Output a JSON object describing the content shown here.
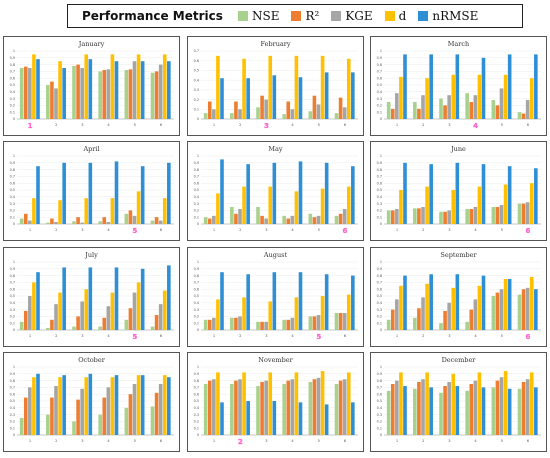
{
  "legend": {
    "title": "Performance Metrics",
    "items": [
      {
        "label": "NSE",
        "color": "#a9d18e"
      },
      {
        "label": "R²",
        "color": "#ed7d31"
      },
      {
        "label": "KGE",
        "color": "#a5a5a5"
      },
      {
        "label": "d",
        "color": "#ffc000"
      },
      {
        "label": "nRMSE",
        "color": "#2e8fd4"
      }
    ]
  },
  "highlight_color": "#ff66cc",
  "chart_data": [
    {
      "type": "bar",
      "title": "January",
      "categories": [
        "1",
        "2",
        "3",
        "4",
        "5",
        "6"
      ],
      "ylim": [
        0,
        1
      ],
      "yticks": [
        "0",
        "0.1",
        "0.2",
        "0.3",
        "0.4",
        "0.5",
        "0.6",
        "0.7",
        "0.8",
        "0.9",
        "1"
      ],
      "highlight": "1",
      "series": [
        {
          "name": "NSE",
          "values": [
            0.75,
            0.5,
            0.78,
            0.7,
            0.72,
            0.68
          ]
        },
        {
          "name": "R²",
          "values": [
            0.77,
            0.55,
            0.8,
            0.72,
            0.73,
            0.7
          ]
        },
        {
          "name": "KGE",
          "values": [
            0.75,
            0.45,
            0.75,
            0.73,
            0.85,
            0.8
          ]
        },
        {
          "name": "d",
          "values": [
            0.95,
            0.85,
            0.95,
            0.95,
            0.95,
            0.95
          ]
        },
        {
          "name": "nRMSE",
          "values": [
            0.88,
            0.75,
            0.88,
            0.85,
            0.85,
            0.85
          ]
        }
      ]
    },
    {
      "type": "bar",
      "title": "February",
      "categories": [
        "1",
        "2",
        "3",
        "4",
        "5",
        "6"
      ],
      "ylim": [
        0,
        0.7
      ],
      "yticks": [
        "0",
        "0.1",
        "0.2",
        "0.3",
        "0.4",
        "0.5",
        "0.6",
        "0.7"
      ],
      "highlight": "3",
      "series": [
        {
          "name": "NSE",
          "values": [
            0.06,
            0.06,
            0.12,
            0.05,
            0.08,
            0.06
          ]
        },
        {
          "name": "R²",
          "values": [
            0.18,
            0.18,
            0.24,
            0.18,
            0.24,
            0.22
          ]
        },
        {
          "name": "KGE",
          "values": [
            0.1,
            0.1,
            0.2,
            0.1,
            0.15,
            0.12
          ]
        },
        {
          "name": "d",
          "values": [
            0.65,
            0.62,
            0.65,
            0.65,
            0.65,
            0.62
          ]
        },
        {
          "name": "nRMSE",
          "values": [
            0.42,
            0.42,
            0.45,
            0.43,
            0.48,
            0.48
          ]
        }
      ]
    },
    {
      "type": "bar",
      "title": "March",
      "categories": [
        "1",
        "2",
        "3",
        "4",
        "5",
        "6"
      ],
      "ylim": [
        0,
        1
      ],
      "yticks": [
        "0",
        "0.1",
        "0.2",
        "0.3",
        "0.4",
        "0.5",
        "0.6",
        "0.7",
        "0.8",
        "0.9",
        "1"
      ],
      "highlight": "4",
      "series": [
        {
          "name": "NSE",
          "values": [
            0.25,
            0.25,
            0.3,
            0.38,
            0.28,
            0.1
          ]
        },
        {
          "name": "R²",
          "values": [
            0.15,
            0.15,
            0.2,
            0.25,
            0.2,
            0.08
          ]
        },
        {
          "name": "KGE",
          "values": [
            0.38,
            0.35,
            0.35,
            0.35,
            0.45,
            0.28
          ]
        },
        {
          "name": "d",
          "values": [
            0.62,
            0.6,
            0.65,
            0.65,
            0.65,
            0.6
          ]
        },
        {
          "name": "nRMSE",
          "values": [
            0.95,
            0.95,
            0.95,
            0.9,
            0.95,
            0.95
          ]
        }
      ]
    },
    {
      "type": "bar",
      "title": "April",
      "categories": [
        "1",
        "2",
        "3",
        "4",
        "5",
        "6"
      ],
      "ylim": [
        0,
        1
      ],
      "yticks": [
        "0",
        "0.1",
        "0.2",
        "0.3",
        "0.4",
        "0.5",
        "0.6",
        "0.7",
        "0.8",
        "0.9",
        "1"
      ],
      "highlight": "5",
      "series": [
        {
          "name": "NSE",
          "values": [
            0.08,
            0.02,
            0.04,
            0.04,
            0.15,
            0.05
          ]
        },
        {
          "name": "R²",
          "values": [
            0.15,
            0.08,
            0.1,
            0.1,
            0.2,
            0.1
          ]
        },
        {
          "name": "KGE",
          "values": [
            0.05,
            0.03,
            0.02,
            0.03,
            0.12,
            0.05
          ]
        },
        {
          "name": "d",
          "values": [
            0.38,
            0.35,
            0.38,
            0.38,
            0.48,
            0.38
          ]
        },
        {
          "name": "nRMSE",
          "values": [
            0.85,
            0.9,
            0.9,
            0.92,
            0.85,
            0.9
          ]
        }
      ]
    },
    {
      "type": "bar",
      "title": "May",
      "categories": [
        "1",
        "2",
        "3",
        "4",
        "5",
        "6"
      ],
      "ylim": [
        0,
        1
      ],
      "yticks": [
        "0",
        "0.1",
        "0.2",
        "0.3",
        "0.4",
        "0.5",
        "0.6",
        "0.7",
        "0.8",
        "0.9",
        "1"
      ],
      "highlight": "6",
      "series": [
        {
          "name": "NSE",
          "values": [
            0.1,
            0.25,
            0.25,
            0.12,
            0.15,
            0.12
          ]
        },
        {
          "name": "R²",
          "values": [
            0.08,
            0.15,
            0.12,
            0.08,
            0.1,
            0.15
          ]
        },
        {
          "name": "KGE",
          "values": [
            0.12,
            0.22,
            0.08,
            0.12,
            0.12,
            0.22
          ]
        },
        {
          "name": "d",
          "values": [
            0.45,
            0.55,
            0.55,
            0.48,
            0.52,
            0.55
          ]
        },
        {
          "name": "nRMSE",
          "values": [
            0.95,
            0.88,
            0.9,
            0.92,
            0.9,
            0.85
          ]
        }
      ]
    },
    {
      "type": "bar",
      "title": "June",
      "categories": [
        "1",
        "2",
        "3",
        "4",
        "5",
        "6"
      ],
      "ylim": [
        0,
        1
      ],
      "yticks": [
        "0",
        "0.1",
        "0.2",
        "0.3",
        "0.4",
        "0.5",
        "0.6",
        "0.7",
        "0.8",
        "0.9",
        "1"
      ],
      "highlight": "6",
      "series": [
        {
          "name": "NSE",
          "values": [
            0.2,
            0.23,
            0.18,
            0.22,
            0.25,
            0.3
          ]
        },
        {
          "name": "R²",
          "values": [
            0.2,
            0.23,
            0.18,
            0.22,
            0.25,
            0.3
          ]
        },
        {
          "name": "KGE",
          "values": [
            0.22,
            0.25,
            0.2,
            0.25,
            0.28,
            0.32
          ]
        },
        {
          "name": "d",
          "values": [
            0.5,
            0.55,
            0.5,
            0.55,
            0.58,
            0.6
          ]
        },
        {
          "name": "nRMSE",
          "values": [
            0.9,
            0.88,
            0.9,
            0.88,
            0.85,
            0.82
          ]
        }
      ]
    },
    {
      "type": "bar",
      "title": "July",
      "categories": [
        "1",
        "2",
        "3",
        "4",
        "5",
        "6"
      ],
      "ylim": [
        0,
        1
      ],
      "yticks": [
        "0",
        "0.1",
        "0.2",
        "0.3",
        "0.4",
        "0.5",
        "0.6",
        "0.7",
        "0.8",
        "0.9",
        "1"
      ],
      "highlight": "5",
      "series": [
        {
          "name": "NSE",
          "values": [
            0.12,
            0.03,
            0.05,
            0.05,
            0.15,
            0.05
          ]
        },
        {
          "name": "R²",
          "values": [
            0.28,
            0.15,
            0.2,
            0.18,
            0.32,
            0.22
          ]
        },
        {
          "name": "KGE",
          "values": [
            0.5,
            0.38,
            0.42,
            0.35,
            0.55,
            0.38
          ]
        },
        {
          "name": "d",
          "values": [
            0.7,
            0.55,
            0.6,
            0.55,
            0.7,
            0.58
          ]
        },
        {
          "name": "nRMSE",
          "values": [
            0.85,
            0.92,
            0.92,
            0.92,
            0.9,
            0.95
          ]
        }
      ]
    },
    {
      "type": "bar",
      "title": "August",
      "categories": [
        "1",
        "2",
        "3",
        "4",
        "5",
        "6"
      ],
      "ylim": [
        0,
        1
      ],
      "yticks": [
        "0",
        "0.1",
        "0.2",
        "0.3",
        "0.4",
        "0.5",
        "0.6",
        "0.7",
        "0.8",
        "0.9",
        "1"
      ],
      "highlight": "5",
      "series": [
        {
          "name": "NSE",
          "values": [
            0.15,
            0.18,
            0.12,
            0.15,
            0.2,
            0.25
          ]
        },
        {
          "name": "R²",
          "values": [
            0.15,
            0.18,
            0.12,
            0.15,
            0.2,
            0.25
          ]
        },
        {
          "name": "KGE",
          "values": [
            0.18,
            0.2,
            0.12,
            0.18,
            0.22,
            0.25
          ]
        },
        {
          "name": "d",
          "values": [
            0.45,
            0.48,
            0.42,
            0.48,
            0.5,
            0.52
          ]
        },
        {
          "name": "nRMSE",
          "values": [
            0.85,
            0.82,
            0.85,
            0.85,
            0.82,
            0.8
          ]
        }
      ]
    },
    {
      "type": "bar",
      "title": "September",
      "categories": [
        "1",
        "2",
        "3",
        "4",
        "5",
        "6"
      ],
      "ylim": [
        0,
        1
      ],
      "yticks": [
        "0",
        "0.1",
        "0.2",
        "0.3",
        "0.4",
        "0.5",
        "0.6",
        "0.7",
        "0.8",
        "0.9",
        "1"
      ],
      "highlight": "6",
      "series": [
        {
          "name": "NSE",
          "values": [
            0.15,
            0.18,
            0.1,
            0.12,
            0.5,
            0.52
          ]
        },
        {
          "name": "R²",
          "values": [
            0.3,
            0.32,
            0.28,
            0.3,
            0.55,
            0.6
          ]
        },
        {
          "name": "KGE",
          "values": [
            0.45,
            0.48,
            0.4,
            0.45,
            0.6,
            0.62
          ]
        },
        {
          "name": "d",
          "values": [
            0.65,
            0.68,
            0.62,
            0.65,
            0.75,
            0.78
          ]
        },
        {
          "name": "nRMSE",
          "values": [
            0.8,
            0.82,
            0.82,
            0.8,
            0.75,
            0.6
          ]
        }
      ]
    },
    {
      "type": "bar",
      "title": "October",
      "categories": [
        "1",
        "2",
        "3",
        "4",
        "5",
        "6"
      ],
      "ylim": [
        0,
        1
      ],
      "yticks": [
        "0",
        "0.1",
        "0.2",
        "0.3",
        "0.4",
        "0.5",
        "0.6",
        "0.7",
        "0.8",
        "0.9",
        "1"
      ],
      "highlight": "",
      "series": [
        {
          "name": "NSE",
          "values": [
            0.25,
            0.3,
            0.2,
            0.3,
            0.4,
            0.42
          ]
        },
        {
          "name": "R²",
          "values": [
            0.55,
            0.55,
            0.52,
            0.55,
            0.6,
            0.62
          ]
        },
        {
          "name": "KGE",
          "values": [
            0.7,
            0.72,
            0.68,
            0.7,
            0.75,
            0.75
          ]
        },
        {
          "name": "d",
          "values": [
            0.85,
            0.85,
            0.85,
            0.85,
            0.88,
            0.88
          ]
        },
        {
          "name": "nRMSE",
          "values": [
            0.9,
            0.88,
            0.9,
            0.88,
            0.88,
            0.85
          ]
        }
      ]
    },
    {
      "type": "bar",
      "title": "November",
      "categories": [
        "1",
        "2",
        "3",
        "4",
        "5",
        "6"
      ],
      "ylim": [
        0,
        1
      ],
      "yticks": [
        "0",
        "0.1",
        "0.2",
        "0.3",
        "0.4",
        "0.5",
        "0.6",
        "0.7",
        "0.8",
        "0.9",
        "1"
      ],
      "highlight": "2",
      "series": [
        {
          "name": "NSE",
          "values": [
            0.75,
            0.75,
            0.72,
            0.75,
            0.78,
            0.75
          ]
        },
        {
          "name": "R²",
          "values": [
            0.8,
            0.8,
            0.78,
            0.8,
            0.82,
            0.8
          ]
        },
        {
          "name": "KGE",
          "values": [
            0.82,
            0.82,
            0.8,
            0.82,
            0.84,
            0.82
          ]
        },
        {
          "name": "d",
          "values": [
            0.92,
            0.92,
            0.92,
            0.92,
            0.94,
            0.92
          ]
        },
        {
          "name": "nRMSE",
          "values": [
            0.48,
            0.5,
            0.5,
            0.48,
            0.45,
            0.48
          ]
        }
      ]
    },
    {
      "type": "bar",
      "title": "December",
      "categories": [
        "1",
        "2",
        "3",
        "4",
        "5",
        "6"
      ],
      "ylim": [
        0,
        1
      ],
      "yticks": [
        "0",
        "0.1",
        "0.2",
        "0.3",
        "0.4",
        "0.5",
        "0.6",
        "0.7",
        "0.8",
        "0.9",
        "1"
      ],
      "highlight": "",
      "series": [
        {
          "name": "NSE",
          "values": [
            0.65,
            0.68,
            0.62,
            0.65,
            0.7,
            0.68
          ]
        },
        {
          "name": "R²",
          "values": [
            0.75,
            0.78,
            0.72,
            0.75,
            0.8,
            0.78
          ]
        },
        {
          "name": "KGE",
          "values": [
            0.8,
            0.82,
            0.78,
            0.8,
            0.85,
            0.82
          ]
        },
        {
          "name": "d",
          "values": [
            0.92,
            0.92,
            0.9,
            0.92,
            0.94,
            0.92
          ]
        },
        {
          "name": "nRMSE",
          "values": [
            0.72,
            0.7,
            0.72,
            0.7,
            0.68,
            0.7
          ]
        }
      ]
    }
  ]
}
